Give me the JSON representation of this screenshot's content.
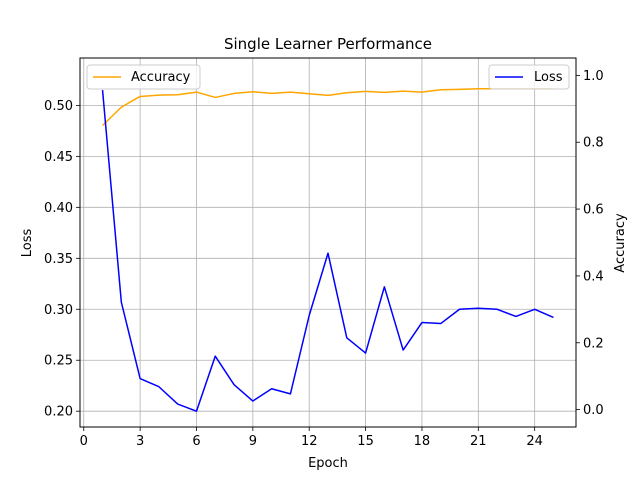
{
  "chart_data": {
    "type": "line",
    "title": "Single Learner Performance",
    "xlabel": "Epoch",
    "ylabel_left": "Loss",
    "ylabel_right": "Accuracy",
    "grid": true,
    "x": [
      1,
      2,
      3,
      4,
      5,
      6,
      7,
      8,
      9,
      10,
      11,
      12,
      13,
      14,
      15,
      16,
      17,
      18,
      19,
      20,
      21,
      22,
      23,
      24,
      25
    ],
    "xlim": [
      -0.2,
      26.2
    ],
    "xticks": [
      0,
      3,
      6,
      9,
      12,
      15,
      18,
      21,
      24
    ],
    "ylim_left": [
      0.1845,
      0.5465
    ],
    "yticks_left": [
      "0.20",
      "0.25",
      "0.30",
      "0.35",
      "0.40",
      "0.45",
      "0.50"
    ],
    "ylim_right": [
      -0.052,
      1.052
    ],
    "yticks_right": [
      "0.0",
      "0.2",
      "0.4",
      "0.6",
      "0.8",
      "1.0"
    ],
    "series": [
      {
        "name": "Loss",
        "axis": "left",
        "color": "#0000ff",
        "values": [
          0.515,
          0.307,
          0.232,
          0.224,
          0.207,
          0.2,
          0.254,
          0.226,
          0.21,
          0.222,
          0.217,
          0.294,
          0.355,
          0.272,
          0.257,
          0.322,
          0.26,
          0.287,
          0.286,
          0.3,
          0.301,
          0.3,
          0.293,
          0.3,
          0.292
        ]
      },
      {
        "name": "Accuracy",
        "axis": "right",
        "color": "#ffa500",
        "values": [
          0.85,
          0.905,
          0.937,
          0.941,
          0.942,
          0.95,
          0.934,
          0.946,
          0.951,
          0.946,
          0.95,
          0.945,
          0.94,
          0.948,
          0.952,
          0.949,
          0.953,
          0.95,
          0.957,
          0.958,
          0.96,
          0.96,
          0.96,
          0.96,
          0.96
        ]
      }
    ],
    "legends": [
      {
        "placement": "top-left",
        "series": "Accuracy"
      },
      {
        "placement": "top-right",
        "series": "Loss"
      }
    ]
  }
}
